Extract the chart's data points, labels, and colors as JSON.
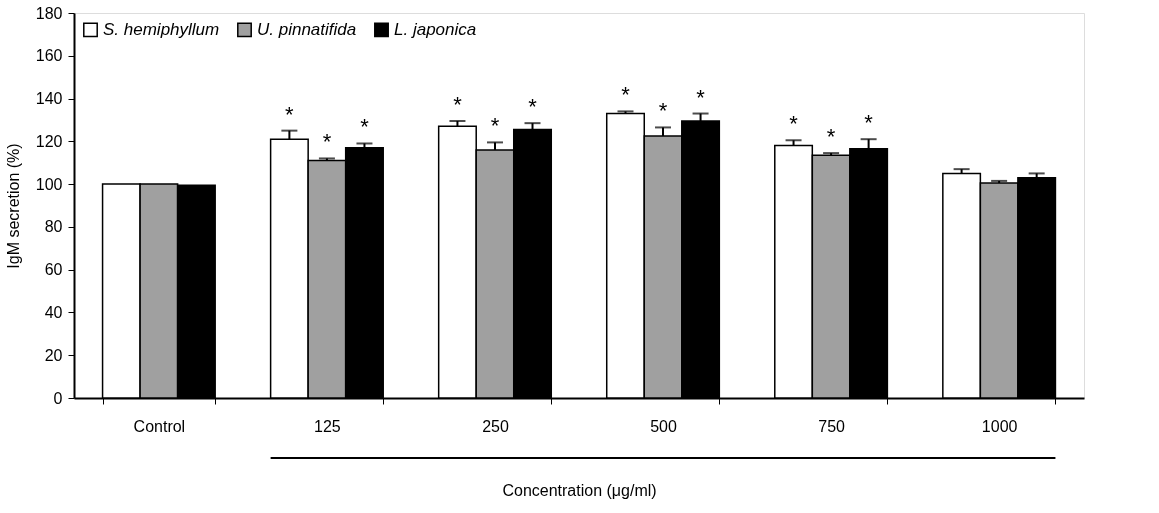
{
  "chart_data": {
    "type": "bar",
    "categories": [
      "Control",
      "125",
      "250",
      "500",
      "750",
      "1000"
    ],
    "xlabel": "Concentration (μg/ml)",
    "ylabel": "IgM secretion (%)",
    "ylim": [
      0,
      180
    ],
    "yticks": [
      0,
      20,
      40,
      60,
      80,
      100,
      120,
      140,
      160,
      180
    ],
    "grid": false,
    "legend": "top left",
    "series": [
      {
        "name": "S. hemiphyllum",
        "color": "#ffffff",
        "values": [
          100,
          121,
          127,
          133,
          118,
          105
        ],
        "errors": [
          null,
          [
            121,
            125
          ],
          [
            127,
            129.5
          ],
          [
            133,
            134
          ],
          [
            118,
            120.5
          ],
          [
            105,
            107
          ]
        ],
        "value_labels": [
          null,
          "*",
          "*",
          "*",
          "*",
          null
        ]
      },
      {
        "name": "U. pinnatifida",
        "color": "#a0a0a0",
        "values": [
          100,
          111,
          116,
          122.5,
          113.5,
          100.5
        ],
        "errors": [
          null,
          [
            111,
            112
          ],
          [
            116,
            119.5
          ],
          [
            122.5,
            126.5
          ],
          [
            113.5,
            114.5
          ],
          [
            100.5,
            101.5
          ]
        ],
        "value_labels": [
          null,
          "*",
          "*",
          "*",
          "*",
          null
        ]
      },
      {
        "name": "L. japonica",
        "color": "#000000",
        "values": [
          99.5,
          117,
          125.5,
          129.5,
          116.5,
          103
        ],
        "errors": [
          null,
          [
            117,
            119
          ],
          [
            125.5,
            128.5
          ],
          [
            129.5,
            133
          ],
          [
            116.5,
            121
          ],
          [
            103,
            105
          ]
        ],
        "value_labels": [
          null,
          "*",
          "*",
          "*",
          "*",
          null
        ]
      }
    ]
  }
}
